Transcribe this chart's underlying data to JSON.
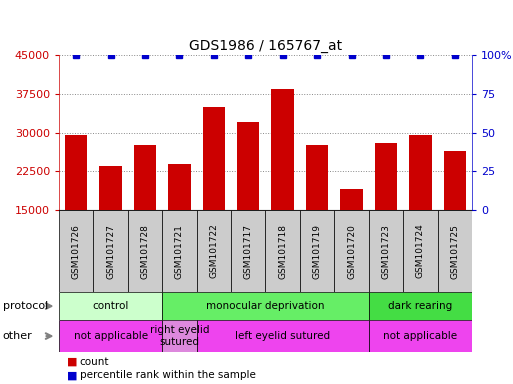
{
  "title": "GDS1986 / 165767_at",
  "samples": [
    "GSM101726",
    "GSM101727",
    "GSM101728",
    "GSM101721",
    "GSM101722",
    "GSM101717",
    "GSM101718",
    "GSM101719",
    "GSM101720",
    "GSM101723",
    "GSM101724",
    "GSM101725"
  ],
  "counts": [
    29500,
    23500,
    27500,
    24000,
    35000,
    32000,
    38500,
    27500,
    19000,
    28000,
    29500,
    26500
  ],
  "percentile_ranks": [
    100,
    100,
    100,
    100,
    100,
    100,
    100,
    100,
    100,
    100,
    100,
    100
  ],
  "ylim_left": [
    15000,
    45000
  ],
  "ylim_right": [
    0,
    100
  ],
  "yticks_left": [
    15000,
    22500,
    30000,
    37500,
    45000
  ],
  "yticks_right": [
    0,
    25,
    50,
    75,
    100
  ],
  "bar_color": "#cc0000",
  "dot_color": "#0000cc",
  "sample_label_bg": "#cccccc",
  "protocol_groups": [
    {
      "label": "control",
      "start": 0,
      "end": 3,
      "color": "#ccffcc"
    },
    {
      "label": "monocular deprivation",
      "start": 3,
      "end": 9,
      "color": "#66ee66"
    },
    {
      "label": "dark rearing",
      "start": 9,
      "end": 12,
      "color": "#44dd44"
    }
  ],
  "other_groups": [
    {
      "label": "not applicable",
      "start": 0,
      "end": 3,
      "color": "#ee44ee"
    },
    {
      "label": "right eyelid\nsutured",
      "start": 3,
      "end": 4,
      "color": "#dd88dd"
    },
    {
      "label": "left eyelid sutured",
      "start": 4,
      "end": 9,
      "color": "#ee44ee"
    },
    {
      "label": "not applicable",
      "start": 9,
      "end": 12,
      "color": "#ee44ee"
    }
  ],
  "legend_count_color": "#cc0000",
  "legend_pct_color": "#0000cc",
  "bg_color": "#ffffff",
  "grid_color": "#888888"
}
